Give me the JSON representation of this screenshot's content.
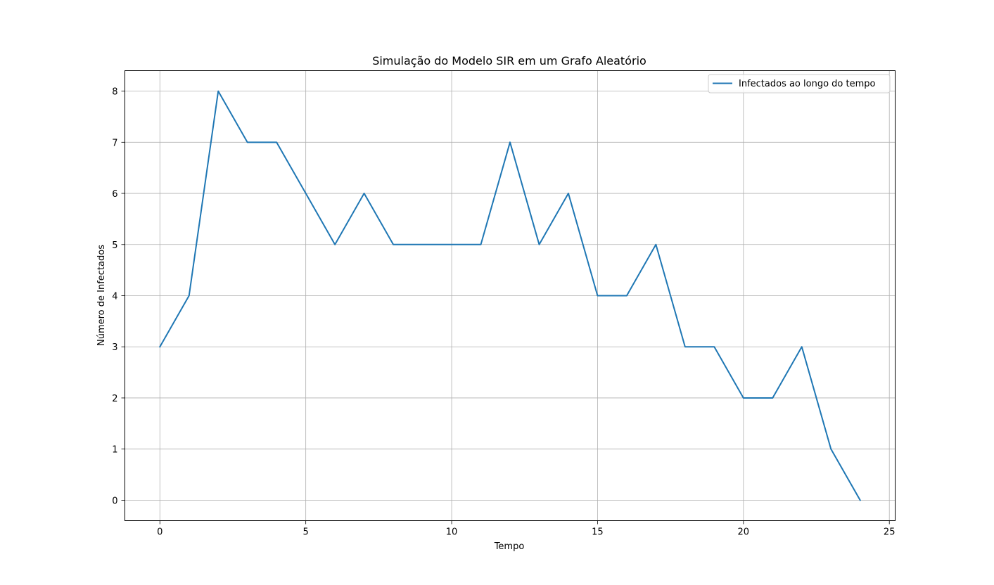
{
  "chart_data": {
    "type": "line",
    "title": "Simulação do Modelo SIR em um Grafo Aleatório",
    "xlabel": "Tempo",
    "ylabel": "Número de Infectados",
    "xlim": [
      -1.2,
      25.2
    ],
    "ylim": [
      -0.4,
      8.4
    ],
    "xticks": [
      0,
      5,
      10,
      15,
      20,
      25
    ],
    "yticks": [
      0,
      1,
      2,
      3,
      4,
      5,
      6,
      7,
      8
    ],
    "grid": true,
    "legend_position": "top-right",
    "series": [
      {
        "name": "Infectados ao longo do tempo",
        "color": "#1f77b4",
        "x": [
          0,
          1,
          2,
          3,
          4,
          5,
          6,
          7,
          8,
          9,
          10,
          11,
          12,
          13,
          14,
          15,
          16,
          17,
          18,
          19,
          20,
          21,
          22,
          23,
          24
        ],
        "y": [
          3,
          4,
          8,
          7,
          7,
          6,
          5,
          6,
          5,
          5,
          5,
          5,
          7,
          5,
          6,
          4,
          4,
          5,
          3,
          3,
          2,
          2,
          3,
          1,
          0
        ]
      }
    ]
  }
}
